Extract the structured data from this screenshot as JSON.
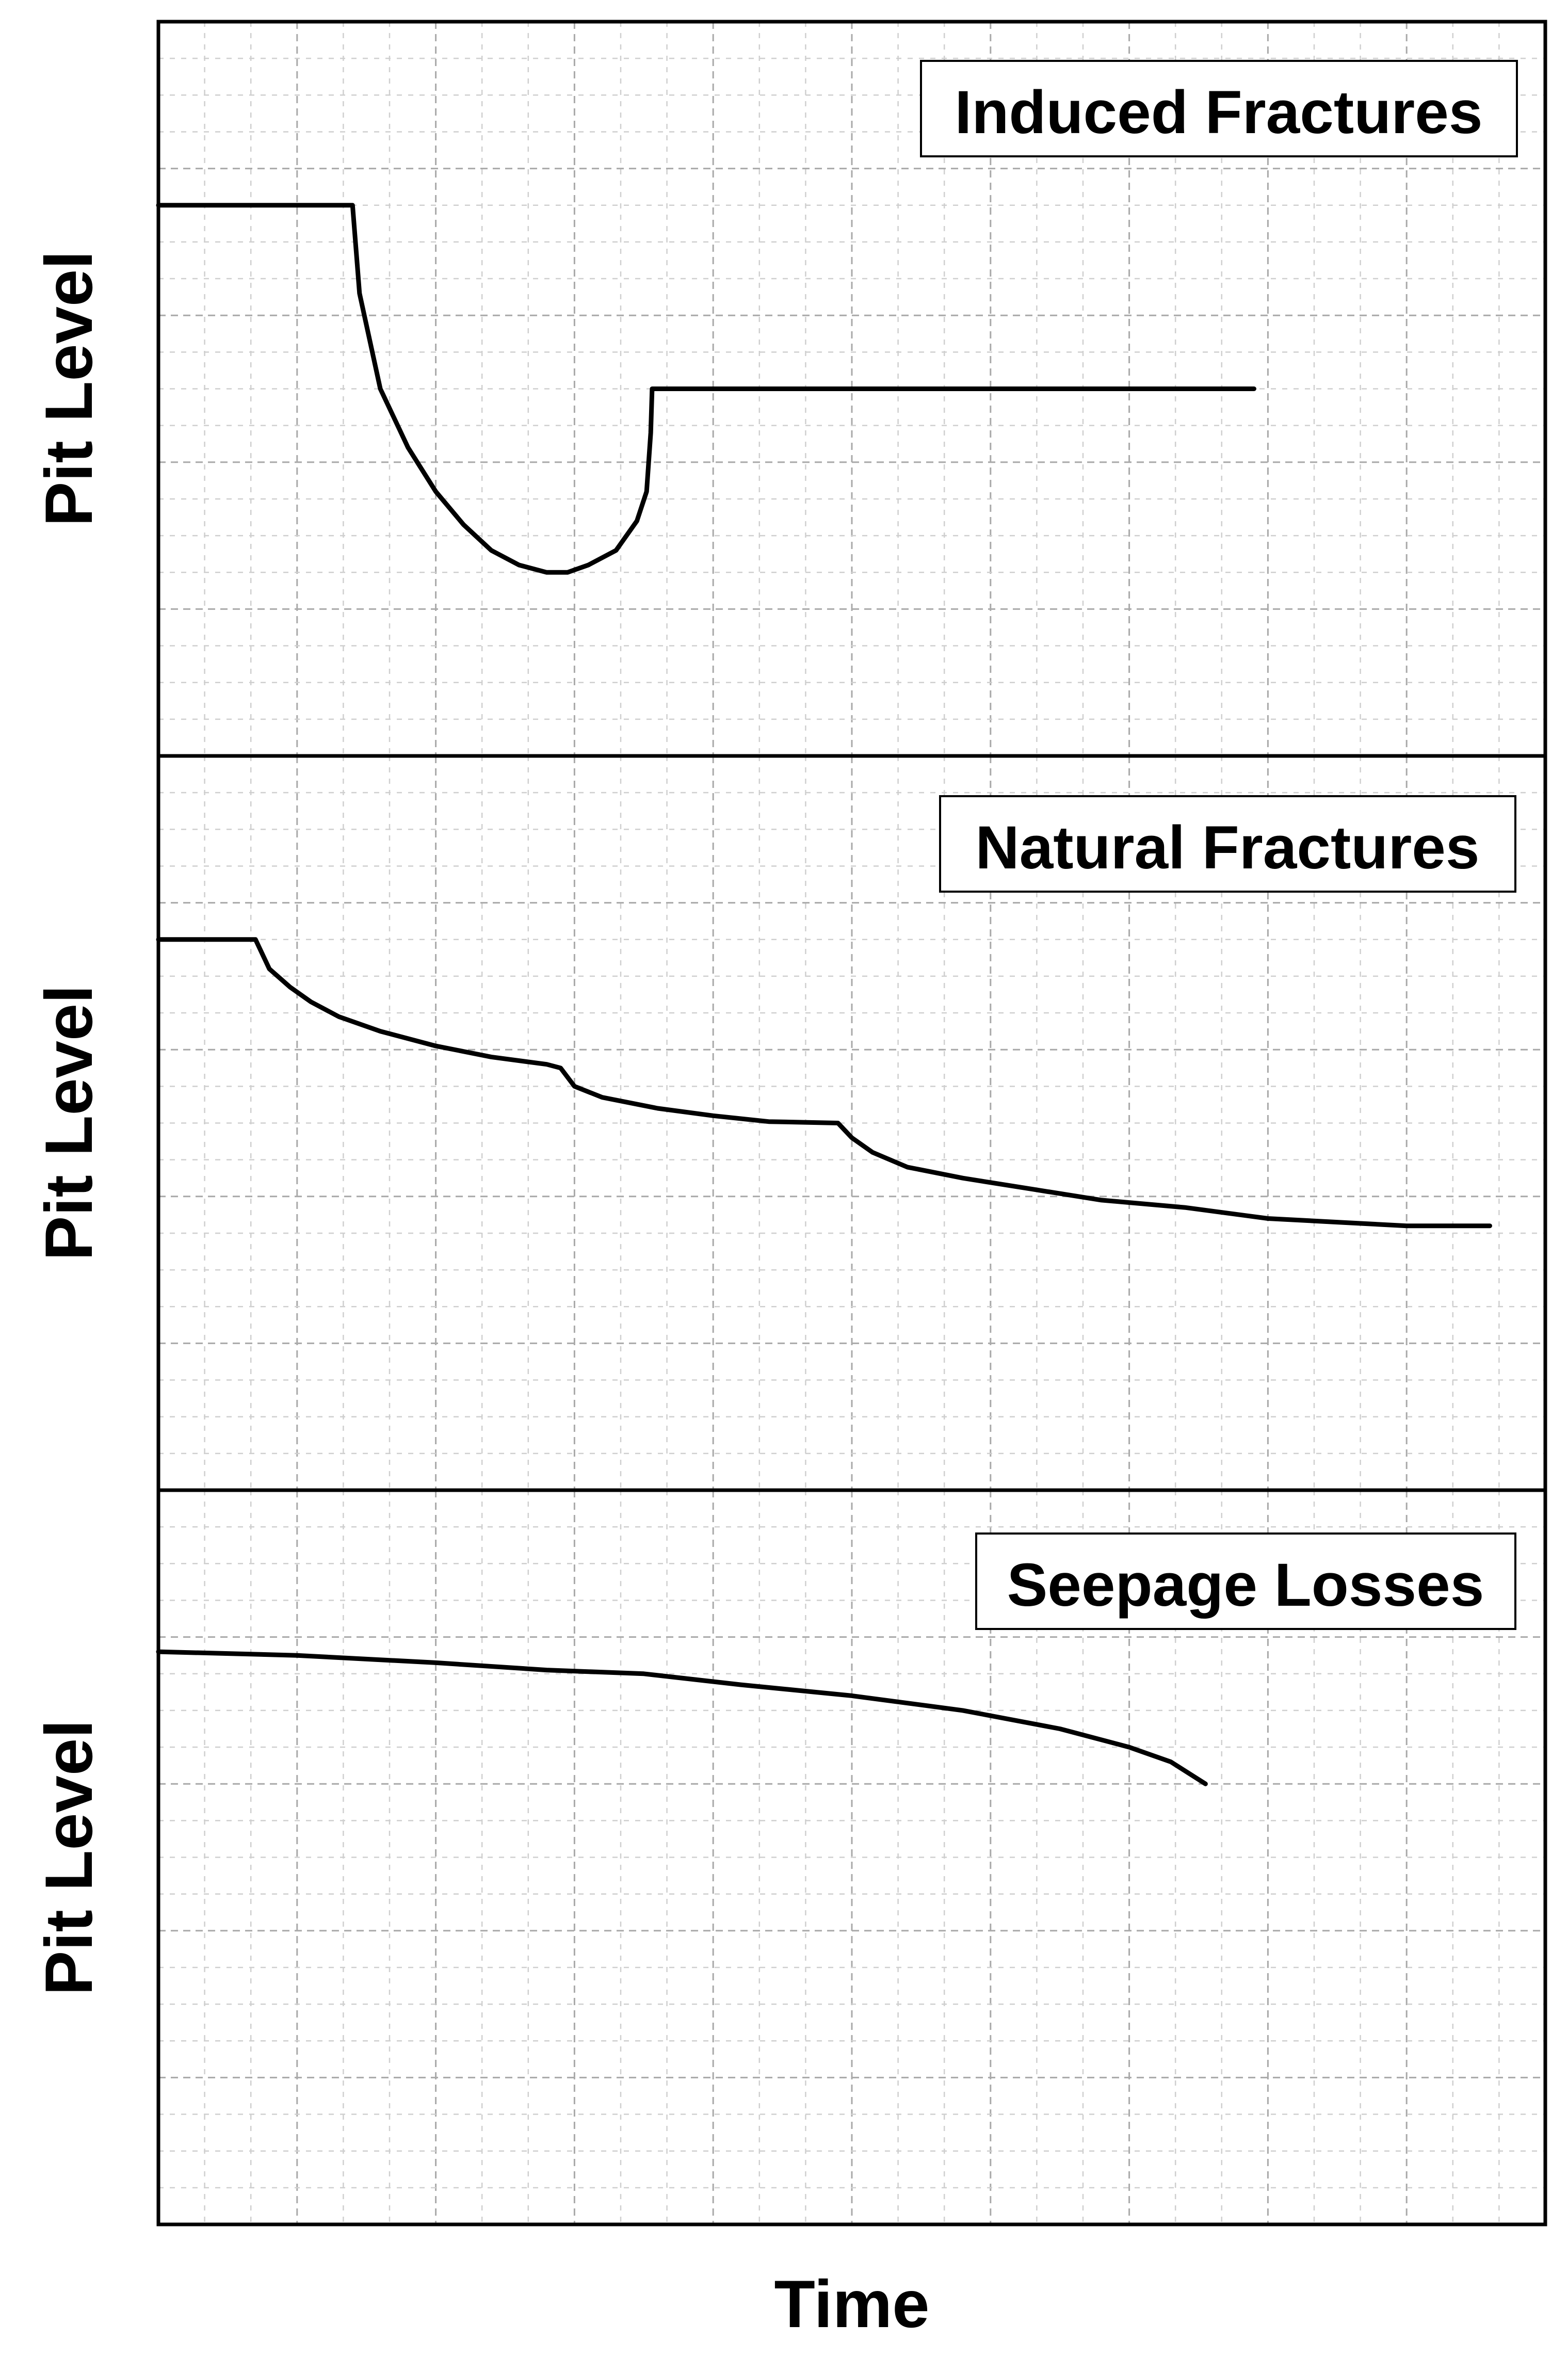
{
  "figure": {
    "xlabel": "Time"
  },
  "chart_data": [
    {
      "type": "line",
      "title": "Induced Fractures",
      "xlabel": "Time",
      "ylabel": "Pit Level",
      "xlim": [
        0,
        100
      ],
      "ylim": [
        0,
        100
      ],
      "grid": true,
      "series": [
        {
          "points": [
            [
              0,
              75
            ],
            [
              14,
              75
            ],
            [
              14.5,
              63
            ],
            [
              16,
              50
            ],
            [
              18,
              42
            ],
            [
              20,
              36
            ],
            [
              22,
              31.5
            ],
            [
              24,
              28
            ],
            [
              26,
              26
            ],
            [
              28,
              25
            ],
            [
              29.5,
              25
            ],
            [
              31,
              26
            ],
            [
              33,
              28
            ],
            [
              34.5,
              32
            ],
            [
              35.2,
              36
            ],
            [
              35.5,
              44
            ],
            [
              35.6,
              50
            ],
            [
              79,
              50
            ]
          ]
        }
      ]
    },
    {
      "type": "line",
      "title": "Natural Fractures",
      "xlabel": "Time",
      "ylabel": "Pit Level",
      "xlim": [
        0,
        100
      ],
      "ylim": [
        0,
        100
      ],
      "grid": true,
      "series": [
        {
          "points": [
            [
              0,
              75
            ],
            [
              7,
              75
            ],
            [
              8,
              71
            ],
            [
              9.5,
              68.5
            ],
            [
              11,
              66.5
            ],
            [
              13,
              64.5
            ],
            [
              16,
              62.5
            ],
            [
              20,
              60.5
            ],
            [
              24,
              59
            ],
            [
              28,
              58
            ],
            [
              29,
              57.5
            ],
            [
              30,
              55
            ],
            [
              32,
              53.5
            ],
            [
              36,
              52
            ],
            [
              40,
              51
            ],
            [
              44,
              50.2
            ],
            [
              49,
              50
            ],
            [
              50,
              48
            ],
            [
              51.5,
              46
            ],
            [
              54,
              44
            ],
            [
              58,
              42.5
            ],
            [
              63,
              41
            ],
            [
              68,
              39.5
            ],
            [
              74,
              38.5
            ],
            [
              80,
              37
            ],
            [
              85,
              36.5
            ],
            [
              90,
              36
            ],
            [
              96,
              36
            ]
          ]
        }
      ]
    },
    {
      "type": "line",
      "title": "Seepage Losses",
      "xlabel": "Time",
      "ylabel": "Pit Level",
      "xlim": [
        0,
        100
      ],
      "ylim": [
        0,
        100
      ],
      "grid": true,
      "series": [
        {
          "points": [
            [
              0,
              78
            ],
            [
              10,
              77.5
            ],
            [
              20,
              76.5
            ],
            [
              28,
              75.5
            ],
            [
              35,
              75
            ],
            [
              42,
              73.5
            ],
            [
              50,
              72
            ],
            [
              58,
              70
            ],
            [
              65,
              67.5
            ],
            [
              70,
              65
            ],
            [
              73,
              63
            ],
            [
              75.5,
              60
            ]
          ]
        }
      ]
    }
  ]
}
